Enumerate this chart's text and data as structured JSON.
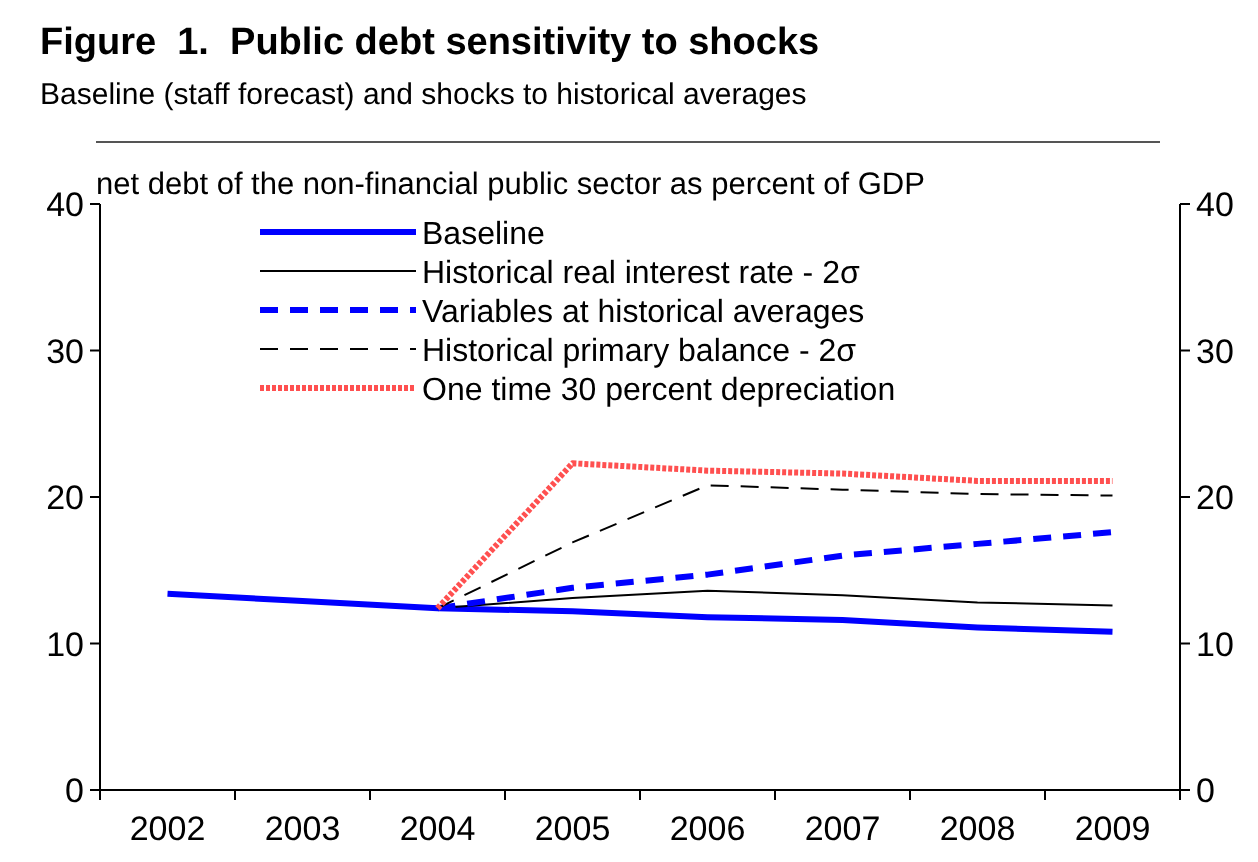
{
  "chart_data": {
    "type": "line",
    "title": "Figure  1.  Public debt sensitivity to shocks",
    "subtitle": "Baseline (staff forecast) and shocks to historical averages",
    "ylabel": "net debt of the non-financial public sector as percent of GDP",
    "categories": [
      "2002",
      "2003",
      "2004",
      "2005",
      "2006",
      "2007",
      "2008",
      "2009"
    ],
    "series": [
      {
        "name": "Baseline",
        "color": "#0000ff",
        "line_style": "solid",
        "values": [
          13.4,
          12.9,
          12.4,
          12.2,
          11.8,
          11.6,
          11.1,
          10.8
        ]
      },
      {
        "name": "Historical real interest rate - 2σ",
        "color": "#000000",
        "line_style": "solid",
        "values": [
          null,
          null,
          12.4,
          13.1,
          13.6,
          13.3,
          12.8,
          12.6
        ]
      },
      {
        "name": "Variables at historical averages",
        "color": "#0000ff",
        "line_style": "dashed",
        "values": [
          null,
          null,
          12.4,
          13.8,
          14.7,
          16.0,
          16.8,
          17.6
        ]
      },
      {
        "name": "Historical primary balance - 2σ",
        "color": "#000000",
        "line_style": "dashed",
        "values": [
          null,
          null,
          12.4,
          16.9,
          20.8,
          20.5,
          20.2,
          20.1
        ]
      },
      {
        "name": "One time 30 percent depreciation",
        "color": "#ff5050",
        "line_style": "dotted",
        "values": [
          null,
          null,
          12.4,
          22.3,
          21.8,
          21.6,
          21.1,
          21.1
        ]
      }
    ],
    "ylim": [
      0,
      40
    ],
    "yticks": [
      0,
      10,
      20,
      30,
      40
    ],
    "y2lim": [
      0,
      40
    ],
    "y2ticks": [
      0,
      10,
      20,
      30,
      40
    ],
    "grid": false,
    "legend": "top left",
    "marker": "none"
  }
}
